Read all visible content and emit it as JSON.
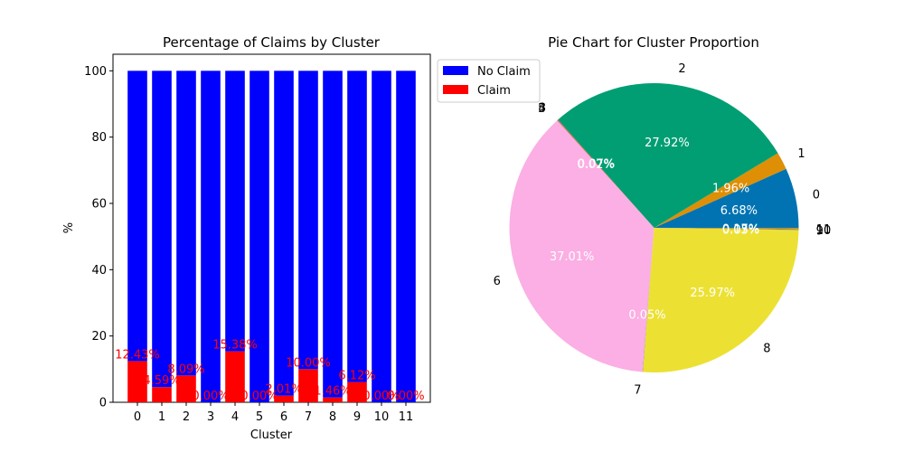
{
  "chart_data": [
    {
      "type": "bar",
      "stacked": true,
      "title": "Percentage of Claims by Cluster",
      "xlabel": "Cluster",
      "ylabel": "%",
      "ylim": [
        0,
        105
      ],
      "yticks": [
        0,
        20,
        40,
        60,
        80,
        100
      ],
      "categories": [
        "0",
        "1",
        "2",
        "3",
        "4",
        "5",
        "6",
        "7",
        "8",
        "9",
        "10",
        "11"
      ],
      "series": [
        {
          "name": "No Claim",
          "color": "#0000ff",
          "values": [
            87.57,
            95.41,
            91.91,
            100.0,
            84.62,
            100.0,
            97.99,
            90.0,
            98.54,
            93.88,
            100.0,
            100.0
          ]
        },
        {
          "name": "Claim",
          "color": "#ff0000",
          "values": [
            12.43,
            4.59,
            8.09,
            0.0,
            15.38,
            0.0,
            2.01,
            10.0,
            1.46,
            6.12,
            0.0,
            0.0
          ]
        }
      ],
      "data_labels": [
        "12.43%",
        "4.59%",
        "8.09%",
        "0.00%",
        "15.38%",
        "0.00%",
        "2.01%",
        "10.00%",
        "1.46%",
        "6.12%",
        "0.00%",
        "0.00%"
      ],
      "data_label_color": "#ff0000",
      "legend": {
        "placement": "upper-right-outside",
        "entries": [
          "No Claim",
          "Claim"
        ]
      },
      "grid": false
    },
    {
      "type": "pie",
      "title": "Pie Chart for Cluster Proportion",
      "labels": [
        "0",
        "1",
        "2",
        "3",
        "4",
        "5",
        "6",
        "7",
        "8",
        "9",
        "10",
        "11"
      ],
      "values": [
        6.68,
        1.96,
        27.92,
        0.07,
        0.07,
        0.02,
        37.01,
        0.05,
        25.97,
        0.03,
        0.05,
        0.17
      ],
      "pct_labels": [
        "6.68%",
        "1.96%",
        "27.92%",
        "0.07%",
        "0.07%",
        "0.02%",
        "37.01%",
        "0.05%",
        "25.97%",
        "0.03%",
        "0.05%",
        "0.17%"
      ],
      "colors": [
        "#0173b2",
        "#de8f05",
        "#029e73",
        "#d55e00",
        "#cc78bc",
        "#ca9161",
        "#fbafe4",
        "#949494",
        "#ece133",
        "#56b4e9",
        "#0173b2",
        "#de8f05"
      ],
      "pct_color": "#ffffff"
    }
  ]
}
